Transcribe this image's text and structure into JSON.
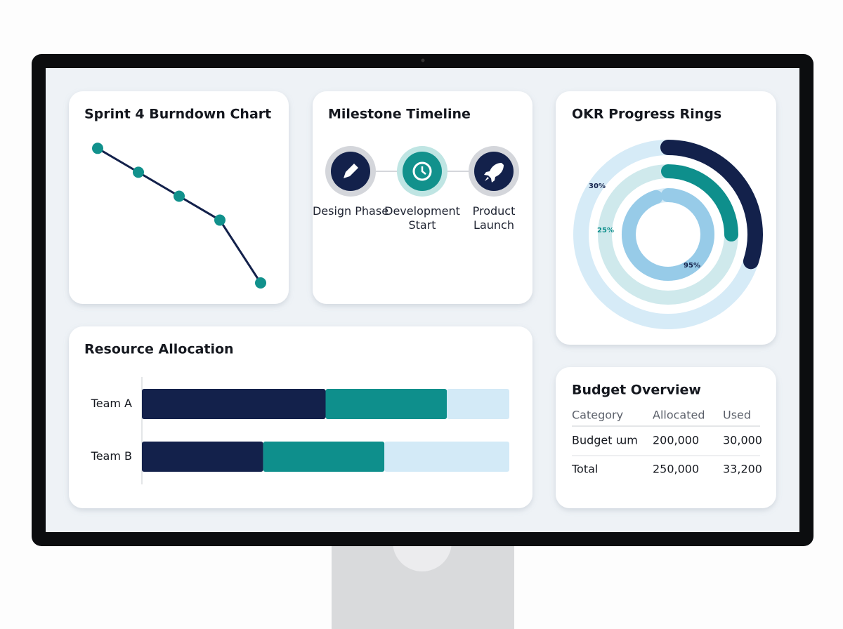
{
  "chart_data": [
    {
      "type": "line",
      "title": "Sprint 4 Burndown Chart",
      "categories": [
        null,
        null,
        null,
        null,
        null
      ],
      "values": [
        90,
        74,
        58,
        42,
        0
      ],
      "ylim": [
        0,
        100
      ],
      "color": "#13214b",
      "marker_color": "#11918c"
    },
    {
      "type": "ring",
      "title": "OKR Progress Rings",
      "values": [
        30,
        25,
        95
      ],
      "value_labels": [
        "30%",
        "25%",
        "95%"
      ],
      "ylim": [
        0,
        100
      ],
      "colors": [
        "#13214b",
        "#0e8f8c",
        "#97cbe8"
      ],
      "track_colors": [
        "#d6ebf7",
        "#cfe9ec",
        "#d6ebf7"
      ]
    },
    {
      "type": "stacked-bar",
      "orientation": "horizontal",
      "title": "Resource Allocation",
      "categories": [
        "Team A",
        "Team B"
      ],
      "xlim": [
        0,
        100
      ],
      "series": [
        {
          "color": "#13214b",
          "values": [
            50,
            33
          ]
        },
        {
          "color": "#0e8f8c",
          "values": [
            33,
            33
          ]
        },
        {
          "color": "#d3eaf7",
          "values": [
            17,
            34
          ]
        }
      ]
    }
  ],
  "timeline": {
    "title": "Milestone Timeline",
    "nodes": [
      {
        "label": "Design Phase"
      },
      {
        "label": "Development Start"
      },
      {
        "label": "Product Launch"
      }
    ]
  },
  "budget": {
    "title": "Budget Overview",
    "table": {
      "header": [
        "Category",
        "Allocated",
        "Used"
      ],
      "rows": [
        [
          "Budget ɯm",
          "200,000",
          "30,000"
        ],
        [
          "Total",
          "250,000",
          "33,200"
        ]
      ]
    }
  }
}
